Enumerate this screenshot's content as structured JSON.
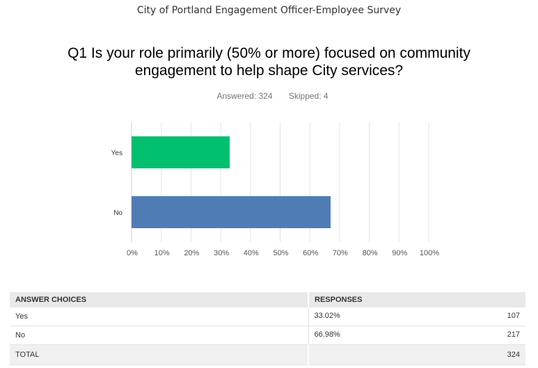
{
  "header": {
    "survey_title": "City of Portland Engagement Officer-Employee Survey",
    "question": "Q1 Is your role primarily (50% or more) focused on community engagement to help shape City services?",
    "answered": "Answered: 324",
    "skipped": "Skipped: 4"
  },
  "chart_data": {
    "type": "bar",
    "orientation": "horizontal",
    "categories": [
      "Yes",
      "No"
    ],
    "values": [
      33.02,
      66.98
    ],
    "colors": [
      "#00bf6f",
      "#507cb6"
    ],
    "xlim": [
      0,
      100
    ],
    "x_ticks": [
      "0%",
      "10%",
      "20%",
      "30%",
      "40%",
      "50%",
      "60%",
      "70%",
      "80%",
      "90%",
      "100%"
    ],
    "grid": true,
    "title": "",
    "xlabel": "",
    "ylabel": ""
  },
  "table": {
    "headers": [
      "ANSWER CHOICES",
      "RESPONSES"
    ],
    "rows": [
      {
        "choice": "Yes",
        "percent": "33.02%",
        "count": "107"
      },
      {
        "choice": "No",
        "percent": "66.98%",
        "count": "217"
      }
    ],
    "total_label": "TOTAL",
    "total_count": "324"
  }
}
